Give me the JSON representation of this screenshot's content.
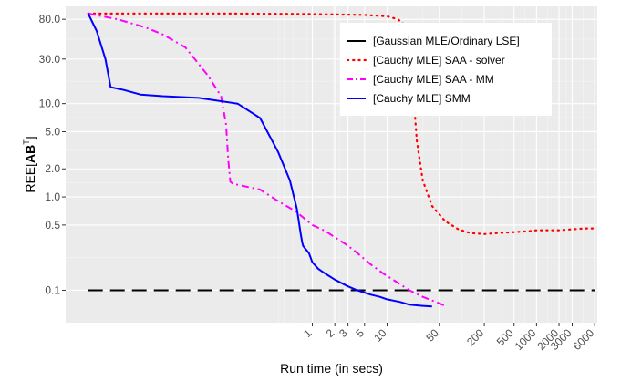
{
  "chart_data": {
    "type": "line",
    "xlabel": "Run time (in secs)",
    "ylabel": {
      "prefix": "REE[",
      "bold": "AB",
      "sup": "T",
      "suffix": "]"
    },
    "x_scale": "log",
    "y_scale": "log",
    "xlim": [
      0.0005,
      6500
    ],
    "ylim": [
      0.045,
      110
    ],
    "y_ticks": [
      {
        "value": 80,
        "label": "80.0"
      },
      {
        "value": 30,
        "label": "30.0"
      },
      {
        "value": 10,
        "label": "10.0"
      },
      {
        "value": 5,
        "label": "5.0"
      },
      {
        "value": 2,
        "label": "2.0"
      },
      {
        "value": 1,
        "label": "1.0"
      },
      {
        "value": 0.5,
        "label": "0.5"
      },
      {
        "value": 0.1,
        "label": "0.1"
      }
    ],
    "x_ticks": [
      {
        "value": 1,
        "label": "1"
      },
      {
        "value": 2,
        "label": "2"
      },
      {
        "value": 3,
        "label": "3"
      },
      {
        "value": 5,
        "label": "5"
      },
      {
        "value": 10,
        "label": "10"
      },
      {
        "value": 50,
        "label": "50"
      },
      {
        "value": 200,
        "label": "200"
      },
      {
        "value": 500,
        "label": "500"
      },
      {
        "value": 1000,
        "label": "1000"
      },
      {
        "value": 2000,
        "label": "2000"
      },
      {
        "value": 3000,
        "label": "3000"
      },
      {
        "value": 6000,
        "label": "6000"
      }
    ],
    "legend_position": "top-right",
    "grid": true,
    "series": [
      {
        "name": "[Gaussian MLE/Ordinary LSE]",
        "color": "#000000",
        "dash": "long-dash",
        "x": [
          0.001,
          6000
        ],
        "y": [
          0.1,
          0.1
        ]
      },
      {
        "name": "[Cauchy MLE] SAA - solver",
        "color": "#ff0000",
        "dash": "dotted",
        "x": [
          0.001,
          0.01,
          0.1,
          1,
          5,
          10,
          14,
          17,
          19,
          21,
          23,
          25,
          30,
          40,
          60,
          90,
          130,
          200,
          300,
          500,
          800,
          1000,
          1500,
          2000,
          3000,
          4500,
          6000
        ],
        "y": [
          92,
          92,
          92,
          91,
          89,
          86,
          80,
          70,
          55,
          30,
          10,
          4,
          1.5,
          0.8,
          0.55,
          0.45,
          0.41,
          0.4,
          0.41,
          0.42,
          0.43,
          0.44,
          0.44,
          0.44,
          0.45,
          0.46,
          0.46
        ]
      },
      {
        "name": "[Cauchy MLE] SAA - MM",
        "color": "#ff00ff",
        "dash": "dash-dot",
        "x": [
          0.001,
          0.0025,
          0.006,
          0.01,
          0.02,
          0.04,
          0.06,
          0.07,
          0.075,
          0.08,
          0.085,
          0.1,
          0.2,
          0.35,
          0.6,
          1,
          1.5,
          2,
          2.5,
          3,
          4,
          6,
          9,
          14,
          20,
          30,
          45,
          60
        ],
        "y": [
          92,
          80,
          65,
          55,
          40,
          20,
          12,
          6,
          2.5,
          1.45,
          1.4,
          1.35,
          1.2,
          0.9,
          0.7,
          0.5,
          0.43,
          0.37,
          0.33,
          0.3,
          0.25,
          0.19,
          0.15,
          0.12,
          0.1,
          0.085,
          0.075,
          0.068
        ]
      },
      {
        "name": "[Cauchy MLE] SMM",
        "color": "#0000ff",
        "dash": "solid",
        "x": [
          0.001,
          0.0013,
          0.0017,
          0.002,
          0.003,
          0.005,
          0.01,
          0.03,
          0.1,
          0.2,
          0.35,
          0.5,
          0.62,
          0.7,
          0.73,
          0.75,
          0.8,
          0.9,
          1,
          1.2,
          1.5,
          2,
          3,
          4,
          6,
          8,
          10,
          15,
          20,
          30,
          40
        ],
        "y": [
          92,
          60,
          30,
          15,
          14,
          12.5,
          12,
          11.5,
          10,
          7,
          3,
          1.5,
          0.75,
          0.4,
          0.33,
          0.3,
          0.28,
          0.25,
          0.2,
          0.17,
          0.15,
          0.13,
          0.11,
          0.1,
          0.09,
          0.085,
          0.08,
          0.075,
          0.07,
          0.068,
          0.067
        ]
      }
    ]
  }
}
